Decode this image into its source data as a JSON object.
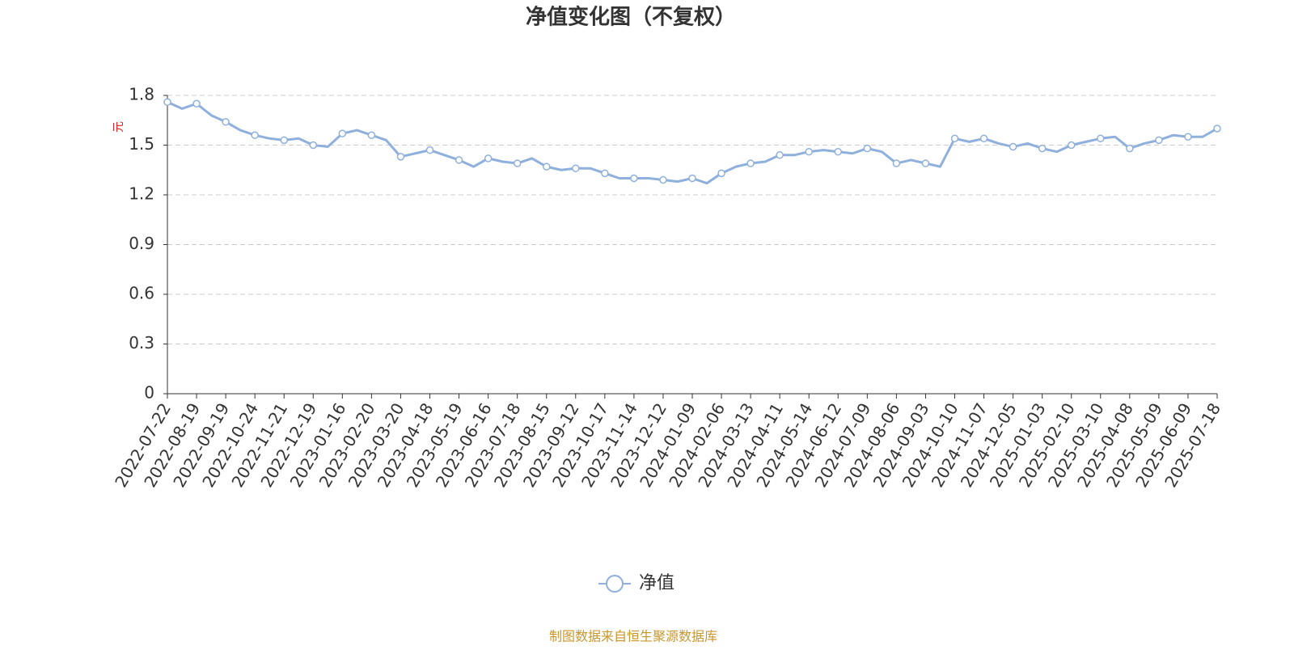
{
  "chart_data": {
    "type": "line",
    "title": "净值变化图（不复权）",
    "y_axis_label": "元",
    "source": "制图数据来自恒生聚源数据库",
    "categories": [
      "2022-07-22",
      null,
      "2022-08-19",
      null,
      "2022-09-19",
      null,
      "2022-10-24",
      null,
      "2022-11-21",
      null,
      "2022-12-19",
      null,
      "2023-01-16",
      null,
      "2023-02-20",
      null,
      "2023-03-20",
      null,
      "2023-04-18",
      null,
      "2023-05-19",
      null,
      "2023-06-16",
      null,
      "2023-07-18",
      null,
      "2023-08-15",
      null,
      "2023-09-12",
      null,
      "2023-10-17",
      null,
      "2023-11-14",
      null,
      "2023-12-12",
      null,
      "2024-01-09",
      null,
      "2024-02-06",
      null,
      "2024-03-13",
      null,
      "2024-04-11",
      null,
      "2024-05-14",
      null,
      "2024-06-12",
      null,
      "2024-07-09",
      null,
      "2024-08-06",
      null,
      "2024-09-03",
      null,
      "2024-10-10",
      null,
      "2024-11-07",
      null,
      "2024-12-05",
      null,
      "2025-01-03",
      null,
      "2025-02-10",
      null,
      "2025-03-10",
      null,
      "2025-04-08",
      null,
      "2025-05-09",
      null,
      "2025-06-09",
      null,
      "2025-07-18"
    ],
    "series": [
      {
        "name": "净值",
        "color": "#8fb0dc",
        "values": [
          1.76,
          1.72,
          1.75,
          1.68,
          1.64,
          1.59,
          1.56,
          1.54,
          1.53,
          1.54,
          1.5,
          1.49,
          1.57,
          1.59,
          1.56,
          1.53,
          1.43,
          1.45,
          1.47,
          1.44,
          1.41,
          1.37,
          1.42,
          1.4,
          1.39,
          1.42,
          1.37,
          1.35,
          1.36,
          1.36,
          1.33,
          1.3,
          1.3,
          1.3,
          1.29,
          1.28,
          1.3,
          1.27,
          1.33,
          1.37,
          1.39,
          1.4,
          1.44,
          1.44,
          1.46,
          1.47,
          1.46,
          1.45,
          1.48,
          1.46,
          1.39,
          1.41,
          1.39,
          1.37,
          1.54,
          1.52,
          1.54,
          1.51,
          1.49,
          1.51,
          1.48,
          1.46,
          1.5,
          1.52,
          1.54,
          1.55,
          1.48,
          1.51,
          1.53,
          1.56,
          1.55,
          1.55,
          1.6
        ]
      }
    ],
    "ylim": [
      0,
      1.8
    ],
    "yticks": [
      0,
      0.3,
      0.6,
      0.9,
      1.2,
      1.5,
      1.8
    ],
    "grid": true
  }
}
